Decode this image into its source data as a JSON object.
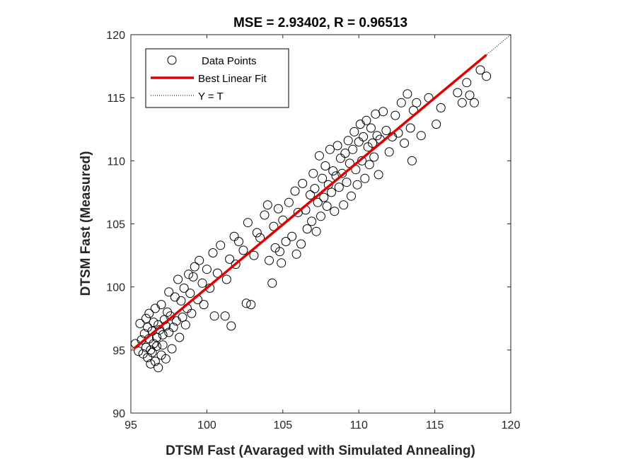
{
  "chart_data": {
    "type": "scatter",
    "title": "MSE = 2.93402, R = 0.96513",
    "xlabel": "DTSM Fast (Avaraged with Simulated Annealing)",
    "ylabel": "DTSM Fast (Measured)",
    "xlim": [
      95,
      120
    ],
    "ylim": [
      90,
      120
    ],
    "xticks": [
      "95",
      "100",
      "105",
      "110",
      "115",
      "120"
    ],
    "yticks": [
      "90",
      "95",
      "100",
      "105",
      "110",
      "115",
      "120"
    ],
    "grid": false,
    "legend_position": "top-left",
    "legend": [
      {
        "label": "Data Points",
        "style": "marker-circle"
      },
      {
        "label": "Best Linear Fit",
        "style": "line-solid-red"
      },
      {
        "label": "Y = T",
        "style": "line-dotted-black"
      }
    ],
    "fit_line": {
      "name": "Best Linear Fit",
      "x": [
        95.2,
        118.4
      ],
      "y": [
        95.1,
        118.4
      ]
    },
    "identity_line": {
      "name": "Y = T",
      "x": [
        95,
        120
      ],
      "y": [
        95,
        120
      ]
    },
    "series": [
      {
        "name": "Data Points",
        "points": [
          [
            95.3,
            95.5
          ],
          [
            95.5,
            94.9
          ],
          [
            95.6,
            97.1
          ],
          [
            95.7,
            95.8
          ],
          [
            95.8,
            94.7
          ],
          [
            95.9,
            96.3
          ],
          [
            96.0,
            95.2
          ],
          [
            96.0,
            97.5
          ],
          [
            96.1,
            94.4
          ],
          [
            96.1,
            96.8
          ],
          [
            96.2,
            95.9
          ],
          [
            96.2,
            97.9
          ],
          [
            96.3,
            95.0
          ],
          [
            96.3,
            93.9
          ],
          [
            96.4,
            96.5
          ],
          [
            96.4,
            94.8
          ],
          [
            96.5,
            97.2
          ],
          [
            96.5,
            95.5
          ],
          [
            96.6,
            98.3
          ],
          [
            96.6,
            94.1
          ],
          [
            96.7,
            96.0
          ],
          [
            96.7,
            95.3
          ],
          [
            96.8,
            97.0
          ],
          [
            96.8,
            93.6
          ],
          [
            96.9,
            96.6
          ],
          [
            97.0,
            94.6
          ],
          [
            97.0,
            98.6
          ],
          [
            97.1,
            96.2
          ],
          [
            97.1,
            95.4
          ],
          [
            97.2,
            97.4
          ],
          [
            97.3,
            96.9
          ],
          [
            97.3,
            94.3
          ],
          [
            97.4,
            98.0
          ],
          [
            97.5,
            96.4
          ],
          [
            97.5,
            99.6
          ],
          [
            97.6,
            97.7
          ],
          [
            97.7,
            95.1
          ],
          [
            97.8,
            96.8
          ],
          [
            97.9,
            99.2
          ],
          [
            98.0,
            97.3
          ],
          [
            98.1,
            100.6
          ],
          [
            98.2,
            96.0
          ],
          [
            98.3,
            98.9
          ],
          [
            98.4,
            97.6
          ],
          [
            98.5,
            99.9
          ],
          [
            98.6,
            97.0
          ],
          [
            98.7,
            98.3
          ],
          [
            98.8,
            101.0
          ],
          [
            98.9,
            99.5
          ],
          [
            99.0,
            97.9
          ],
          [
            99.1,
            100.8
          ],
          [
            99.2,
            101.6
          ],
          [
            99.4,
            99.0
          ],
          [
            99.5,
            102.1
          ],
          [
            99.7,
            100.3
          ],
          [
            99.8,
            98.6
          ],
          [
            100.0,
            101.4
          ],
          [
            100.2,
            99.9
          ],
          [
            100.4,
            102.7
          ],
          [
            100.5,
            97.7
          ],
          [
            100.7,
            101.1
          ],
          [
            100.9,
            103.3
          ],
          [
            101.2,
            97.7
          ],
          [
            101.3,
            100.6
          ],
          [
            101.5,
            102.2
          ],
          [
            101.6,
            96.9
          ],
          [
            101.8,
            104.0
          ],
          [
            101.9,
            101.8
          ],
          [
            102.1,
            103.6
          ],
          [
            102.4,
            102.9
          ],
          [
            102.6,
            98.7
          ],
          [
            102.7,
            105.1
          ],
          [
            102.9,
            98.6
          ],
          [
            103.1,
            102.5
          ],
          [
            103.3,
            104.3
          ],
          [
            103.5,
            103.9
          ],
          [
            103.8,
            105.7
          ],
          [
            104.0,
            106.5
          ],
          [
            104.1,
            102.1
          ],
          [
            104.3,
            100.3
          ],
          [
            104.4,
            104.8
          ],
          [
            104.5,
            103.1
          ],
          [
            104.7,
            106.2
          ],
          [
            104.8,
            102.8
          ],
          [
            104.9,
            101.9
          ],
          [
            105.0,
            105.3
          ],
          [
            105.2,
            103.6
          ],
          [
            105.4,
            106.7
          ],
          [
            105.6,
            104.0
          ],
          [
            105.8,
            107.6
          ],
          [
            105.9,
            102.6
          ],
          [
            106.0,
            105.9
          ],
          [
            106.2,
            103.4
          ],
          [
            106.3,
            108.2
          ],
          [
            106.5,
            106.1
          ],
          [
            106.6,
            104.6
          ],
          [
            106.8,
            107.3
          ],
          [
            106.9,
            105.2
          ],
          [
            107.0,
            109.0
          ],
          [
            107.1,
            107.8
          ],
          [
            107.2,
            104.4
          ],
          [
            107.3,
            106.7
          ],
          [
            107.4,
            110.4
          ],
          [
            107.5,
            105.6
          ],
          [
            107.6,
            108.6
          ],
          [
            107.7,
            107.1
          ],
          [
            107.8,
            109.6
          ],
          [
            107.9,
            106.4
          ],
          [
            108.0,
            108.1
          ],
          [
            108.1,
            110.9
          ],
          [
            108.2,
            107.5
          ],
          [
            108.3,
            109.2
          ],
          [
            108.4,
            106.0
          ],
          [
            108.5,
            108.8
          ],
          [
            108.6,
            111.2
          ],
          [
            108.7,
            107.9
          ],
          [
            108.8,
            110.2
          ],
          [
            108.9,
            109.0
          ],
          [
            109.0,
            106.5
          ],
          [
            109.1,
            110.6
          ],
          [
            109.2,
            108.3
          ],
          [
            109.3,
            111.6
          ],
          [
            109.4,
            109.8
          ],
          [
            109.5,
            107.2
          ],
          [
            109.6,
            110.9
          ],
          [
            109.7,
            112.3
          ],
          [
            109.8,
            109.3
          ],
          [
            109.9,
            108.1
          ],
          [
            110.0,
            111.5
          ],
          [
            110.1,
            112.9
          ],
          [
            110.2,
            110.0
          ],
          [
            110.3,
            111.9
          ],
          [
            110.4,
            108.6
          ],
          [
            110.5,
            113.2
          ],
          [
            110.6,
            111.1
          ],
          [
            110.7,
            109.7
          ],
          [
            110.8,
            112.6
          ],
          [
            110.9,
            111.4
          ],
          [
            111.0,
            110.3
          ],
          [
            111.1,
            113.7
          ],
          [
            111.2,
            112.0
          ],
          [
            111.3,
            108.9
          ],
          [
            111.4,
            111.7
          ],
          [
            111.6,
            113.9
          ],
          [
            111.8,
            112.4
          ],
          [
            112.0,
            110.7
          ],
          [
            112.2,
            111.9
          ],
          [
            112.4,
            113.6
          ],
          [
            112.6,
            112.2
          ],
          [
            112.8,
            114.6
          ],
          [
            113.0,
            111.4
          ],
          [
            113.2,
            115.3
          ],
          [
            113.4,
            112.6
          ],
          [
            113.5,
            110.0
          ],
          [
            113.6,
            114.0
          ],
          [
            113.8,
            114.6
          ],
          [
            114.1,
            112.0
          ],
          [
            114.6,
            115.0
          ],
          [
            115.1,
            112.9
          ],
          [
            115.4,
            114.2
          ],
          [
            116.5,
            115.4
          ],
          [
            116.8,
            114.6
          ],
          [
            117.1,
            116.2
          ],
          [
            117.3,
            115.2
          ],
          [
            117.6,
            114.6
          ],
          [
            118.0,
            117.2
          ],
          [
            118.4,
            116.7
          ]
        ]
      }
    ]
  }
}
